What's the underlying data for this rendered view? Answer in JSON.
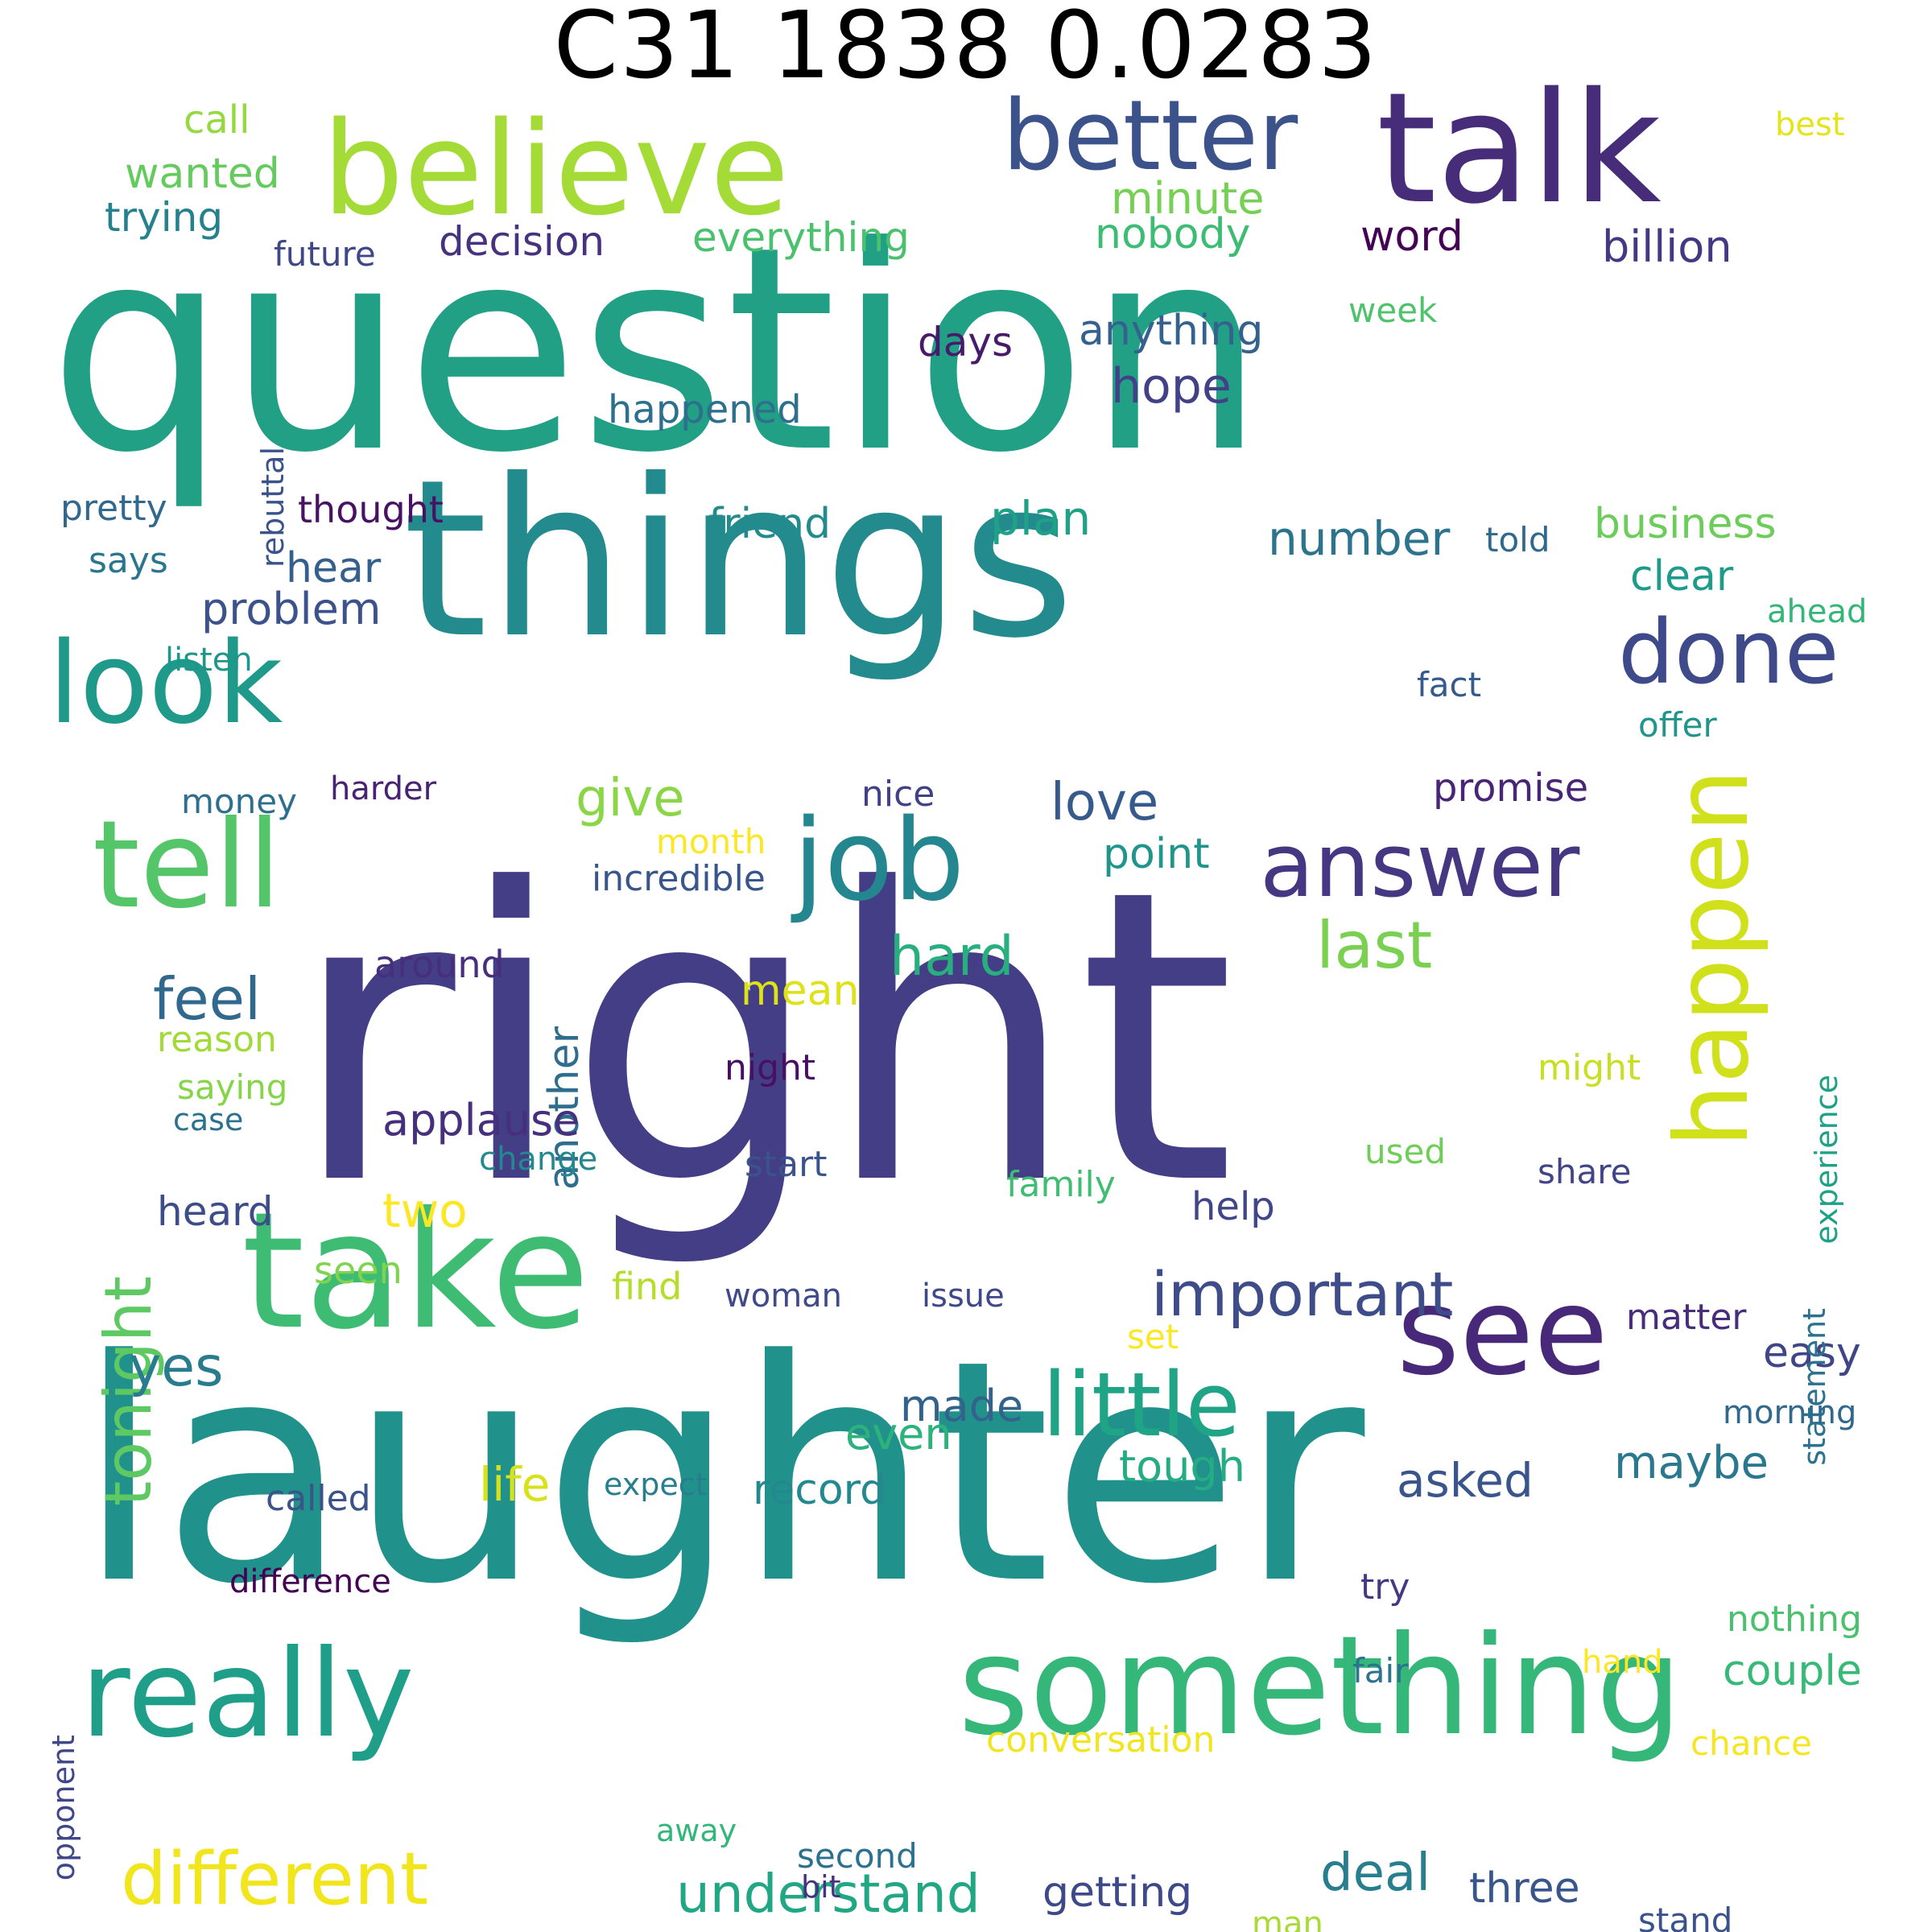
{
  "title": "C31 1838 0.0283",
  "words": [
    {
      "text": "question",
      "color": "#21a085"
    },
    {
      "text": "right",
      "color": "#433e85"
    },
    {
      "text": "laughter",
      "color": "#21918c"
    },
    {
      "text": "things",
      "color": "#238a8d"
    },
    {
      "text": "take",
      "color": "#3fbc73"
    },
    {
      "text": "believe",
      "color": "#a5db36"
    },
    {
      "text": "talk",
      "color": "#472c7a"
    },
    {
      "text": "tell",
      "color": "#54c568"
    },
    {
      "text": "something",
      "color": "#35b779"
    },
    {
      "text": "really",
      "color": "#1f9e89"
    },
    {
      "text": "look",
      "color": "#1f9a8a"
    },
    {
      "text": "see",
      "color": "#482878"
    },
    {
      "text": "job",
      "color": "#24868e"
    },
    {
      "text": "better",
      "color": "#3b528b"
    },
    {
      "text": "happen",
      "color": "#d0e11c"
    },
    {
      "text": "done",
      "color": "#3e4a89"
    },
    {
      "text": "answer",
      "color": "#453781"
    },
    {
      "text": "little",
      "color": "#20a486"
    },
    {
      "text": "different",
      "color": "#f1e51d"
    },
    {
      "text": "tonight",
      "color": "#5ec962"
    },
    {
      "text": "important",
      "color": "#3e4c8a"
    },
    {
      "text": "understand",
      "color": "#22a785"
    },
    {
      "text": "feel",
      "color": "#31688e"
    },
    {
      "text": "last",
      "color": "#7ad151"
    },
    {
      "text": "hard",
      "color": "#29af7f"
    },
    {
      "text": "love",
      "color": "#375a8c"
    },
    {
      "text": "give",
      "color": "#8bd646"
    },
    {
      "text": "deal",
      "color": "#277f8e"
    },
    {
      "text": "yes",
      "color": "#287c8e"
    },
    {
      "text": "little",
      "color": "#20a486"
    },
    {
      "text": "number",
      "color": "#2c738e"
    },
    {
      "text": "plan",
      "color": "#1fa188"
    },
    {
      "text": "hope",
      "color": "#424086"
    },
    {
      "text": "asked",
      "color": "#3a548c"
    },
    {
      "text": "maybe",
      "color": "#2a788e"
    },
    {
      "text": "made",
      "color": "#33638d"
    },
    {
      "text": "another",
      "color": "#2e6d8e"
    },
    {
      "text": "applause",
      "color": "#46307e"
    },
    {
      "text": "problem",
      "color": "#3b528b"
    },
    {
      "text": "two",
      "color": "#fde725"
    },
    {
      "text": "life",
      "color": "#d8e219"
    },
    {
      "text": "even",
      "color": "#2db27d"
    },
    {
      "text": "tough",
      "color": "#25ac82"
    },
    {
      "text": "getting",
      "color": "#3e4989"
    },
    {
      "text": "three",
      "color": "#39568c"
    },
    {
      "text": "record",
      "color": "#23898e"
    },
    {
      "text": "clear",
      "color": "#1e9b8a"
    },
    {
      "text": "business",
      "color": "#6ccd5a"
    },
    {
      "text": "point",
      "color": "#1f958b"
    },
    {
      "text": "hear",
      "color": "#355f8d"
    },
    {
      "text": "heard",
      "color": "#3d4d8a"
    },
    {
      "text": "mean",
      "color": "#dde318"
    },
    {
      "text": "promise",
      "color": "#482576"
    },
    {
      "text": "easy",
      "color": "#404588"
    },
    {
      "text": "couple",
      "color": "#38b977"
    },
    {
      "text": "wanted",
      "color": "#65cb5e"
    },
    {
      "text": "trying",
      "color": "#26818e"
    },
    {
      "text": "call",
      "color": "#95d840"
    },
    {
      "text": "best",
      "color": "#e5e419"
    },
    {
      "text": "minute",
      "color": "#75d054"
    },
    {
      "text": "everything",
      "color": "#4ac16d"
    },
    {
      "text": "decision",
      "color": "#46327e"
    },
    {
      "text": "future",
      "color": "#3f4788"
    },
    {
      "text": "nobody",
      "color": "#3dbc74"
    },
    {
      "text": "word",
      "color": "#440154"
    },
    {
      "text": "billion",
      "color": "#453882"
    },
    {
      "text": "week",
      "color": "#4ec36b"
    },
    {
      "text": "rebuttal",
      "color": "#3a538b"
    },
    {
      "text": "anything",
      "color": "#34618d"
    },
    {
      "text": "days",
      "color": "#481a6c"
    },
    {
      "text": "happened",
      "color": "#2d708e"
    },
    {
      "text": "pretty",
      "color": "#31688e"
    },
    {
      "text": "thought",
      "color": "#471164"
    },
    {
      "text": "friend",
      "color": "#228c8d"
    },
    {
      "text": "told",
      "color": "#30698e"
    },
    {
      "text": "says",
      "color": "#2a768e"
    },
    {
      "text": "ahead",
      "color": "#34b679"
    },
    {
      "text": "listen",
      "color": "#1f968b"
    },
    {
      "text": "fact",
      "color": "#375a8c"
    },
    {
      "text": "offer",
      "color": "#1f958b"
    },
    {
      "text": "money",
      "color": "#2e6e8e"
    },
    {
      "text": "harder",
      "color": "#482374"
    },
    {
      "text": "nice",
      "color": "#424086"
    },
    {
      "text": "month",
      "color": "#fde725"
    },
    {
      "text": "incredible",
      "color": "#39568c"
    },
    {
      "text": "around",
      "color": "#472f7d"
    },
    {
      "text": "experience",
      "color": "#1fa188"
    },
    {
      "text": "reason",
      "color": "#a2da37"
    },
    {
      "text": "night",
      "color": "#471063"
    },
    {
      "text": "might",
      "color": "#c8e020"
    },
    {
      "text": "saying",
      "color": "#86d549"
    },
    {
      "text": "case",
      "color": "#2c728e"
    },
    {
      "text": "change",
      "color": "#23898e"
    },
    {
      "text": "start",
      "color": "#3b528b"
    },
    {
      "text": "used",
      "color": "#6ece58"
    },
    {
      "text": "family",
      "color": "#40bd72"
    },
    {
      "text": "share",
      "color": "#414487"
    },
    {
      "text": "statement",
      "color": "#2c728e"
    },
    {
      "text": "help",
      "color": "#404688"
    },
    {
      "text": "seen",
      "color": "#7fd34e"
    },
    {
      "text": "find",
      "color": "#b5de2b"
    },
    {
      "text": "woman",
      "color": "#3e4a89"
    },
    {
      "text": "issue",
      "color": "#3f4889"
    },
    {
      "text": "matter",
      "color": "#472d7b"
    },
    {
      "text": "set",
      "color": "#fde725"
    },
    {
      "text": "morning",
      "color": "#31688e"
    },
    {
      "text": "expect",
      "color": "#277e8e"
    },
    {
      "text": "called",
      "color": "#3b528b"
    },
    {
      "text": "difference",
      "color": "#440154"
    },
    {
      "text": "try",
      "color": "#443983"
    },
    {
      "text": "nothing",
      "color": "#4ac16d"
    },
    {
      "text": "opponent",
      "color": "#3f4788"
    },
    {
      "text": "fair",
      "color": "#2c738e"
    },
    {
      "text": "hand",
      "color": "#fde725"
    },
    {
      "text": "conversation",
      "color": "#f1e51d"
    },
    {
      "text": "chance",
      "color": "#f6e620"
    },
    {
      "text": "away",
      "color": "#32b67a"
    },
    {
      "text": "second",
      "color": "#2c728e"
    },
    {
      "text": "bit",
      "color": "#46337f"
    },
    {
      "text": "man",
      "color": "#a8db34"
    },
    {
      "text": "stand",
      "color": "#3b528b"
    }
  ]
}
